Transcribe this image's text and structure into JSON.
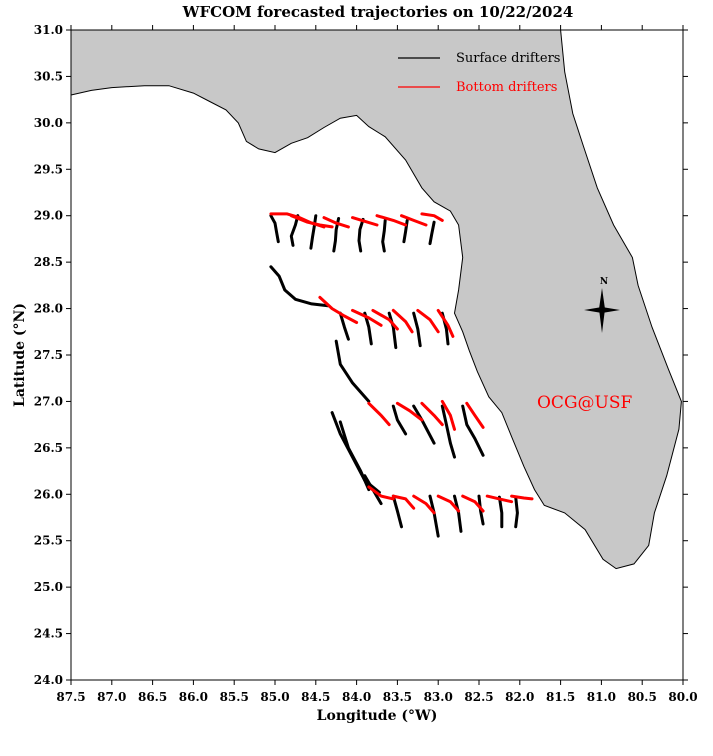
{
  "chart_data": {
    "type": "map-trajectories",
    "title": "WFCOM forecasted trajectories on 10/22/2024",
    "xlabel": "Longitude (°W)",
    "ylabel": "Latitude (°N)",
    "xlim": [
      87.5,
      80.0
    ],
    "ylim": [
      24.0,
      31.0
    ],
    "x_ticks": [
      "87.5",
      "87.0",
      "86.5",
      "86.0",
      "85.5",
      "85.0",
      "84.5",
      "84.0",
      "83.5",
      "83.0",
      "82.5",
      "82.0",
      "81.5",
      "81.0",
      "80.5",
      "80.0"
    ],
    "y_ticks": [
      "24.0",
      "24.5",
      "25.0",
      "25.5",
      "26.0",
      "26.5",
      "27.0",
      "27.5",
      "28.0",
      "28.5",
      "29.0",
      "29.5",
      "30.0",
      "30.5",
      "31.0"
    ],
    "legend": {
      "placement": "top-right",
      "entries": [
        {
          "label": "Surface drifters",
          "color": "#000000"
        },
        {
          "label": "Bottom drifters",
          "color": "#ff0000"
        }
      ]
    },
    "annotation": "OCG@USF",
    "compass_label": "N",
    "colors": {
      "land": "#c8c8c8",
      "surface": "#000000",
      "bottom": "#ff0000"
    },
    "land_outline": [
      [
        87.5,
        30.3
      ],
      [
        87.25,
        30.35
      ],
      [
        87.0,
        30.38
      ],
      [
        86.6,
        30.4
      ],
      [
        86.3,
        30.4
      ],
      [
        86.0,
        30.32
      ],
      [
        85.8,
        30.23
      ],
      [
        85.6,
        30.14
      ],
      [
        85.45,
        30.0
      ],
      [
        85.35,
        29.8
      ],
      [
        85.2,
        29.72
      ],
      [
        85.0,
        29.68
      ],
      [
        84.8,
        29.78
      ],
      [
        84.6,
        29.84
      ],
      [
        84.4,
        29.95
      ],
      [
        84.2,
        30.05
      ],
      [
        84.0,
        30.08
      ],
      [
        83.85,
        29.96
      ],
      [
        83.65,
        29.85
      ],
      [
        83.4,
        29.6
      ],
      [
        83.2,
        29.3
      ],
      [
        83.05,
        29.15
      ],
      [
        82.85,
        29.05
      ],
      [
        82.75,
        28.9
      ],
      [
        82.7,
        28.55
      ],
      [
        82.75,
        28.2
      ],
      [
        82.8,
        27.95
      ],
      [
        82.7,
        27.75
      ],
      [
        82.62,
        27.55
      ],
      [
        82.52,
        27.32
      ],
      [
        82.38,
        27.05
      ],
      [
        82.22,
        26.88
      ],
      [
        82.1,
        26.62
      ],
      [
        81.95,
        26.3
      ],
      [
        81.82,
        26.05
      ],
      [
        81.7,
        25.88
      ],
      [
        81.45,
        25.8
      ],
      [
        81.2,
        25.62
      ],
      [
        80.98,
        25.3
      ],
      [
        80.82,
        25.2
      ],
      [
        80.6,
        25.25
      ],
      [
        80.42,
        25.45
      ],
      [
        80.35,
        25.8
      ],
      [
        80.2,
        26.2
      ],
      [
        80.05,
        26.7
      ],
      [
        80.02,
        27.0
      ],
      [
        80.18,
        27.35
      ],
      [
        80.38,
        27.8
      ],
      [
        80.55,
        28.25
      ],
      [
        80.62,
        28.55
      ],
      [
        80.85,
        28.9
      ],
      [
        81.05,
        29.3
      ],
      [
        81.22,
        29.75
      ],
      [
        81.35,
        30.1
      ],
      [
        81.45,
        30.55
      ],
      [
        81.5,
        31.0
      ],
      [
        87.5,
        31.0
      ]
    ],
    "series": [
      {
        "name": "Surface drifters",
        "group": "surface",
        "lines": [
          [
            [
              85.05,
              29.0
            ],
            [
              85.0,
              28.92
            ],
            [
              84.98,
              28.82
            ],
            [
              84.96,
              28.72
            ]
          ],
          [
            [
              84.72,
              29.0
            ],
            [
              84.75,
              28.9
            ],
            [
              84.8,
              28.78
            ],
            [
              84.78,
              28.68
            ]
          ],
          [
            [
              84.5,
              29.0
            ],
            [
              84.52,
              28.88
            ],
            [
              84.54,
              28.77
            ],
            [
              84.56,
              28.65
            ]
          ],
          [
            [
              84.22,
              28.97
            ],
            [
              84.25,
              28.85
            ],
            [
              84.26,
              28.73
            ],
            [
              84.28,
              28.62
            ]
          ],
          [
            [
              83.92,
              28.96
            ],
            [
              83.96,
              28.85
            ],
            [
              83.97,
              28.73
            ],
            [
              83.95,
              28.62
            ]
          ],
          [
            [
              83.65,
              28.95
            ],
            [
              83.66,
              28.84
            ],
            [
              83.68,
              28.72
            ],
            [
              83.66,
              28.62
            ]
          ],
          [
            [
              83.38,
              28.95
            ],
            [
              83.4,
              28.83
            ],
            [
              83.42,
              28.72
            ]
          ],
          [
            [
              83.05,
              28.93
            ],
            [
              83.08,
              28.8
            ],
            [
              83.1,
              28.7
            ]
          ],
          [
            [
              85.05,
              28.45
            ],
            [
              84.95,
              28.35
            ],
            [
              84.88,
              28.2
            ],
            [
              84.75,
              28.1
            ],
            [
              84.55,
              28.05
            ],
            [
              84.35,
              28.03
            ]
          ],
          [
            [
              84.2,
              27.95
            ],
            [
              84.15,
              27.8
            ],
            [
              84.1,
              27.67
            ]
          ],
          [
            [
              83.9,
              27.95
            ],
            [
              83.85,
              27.8
            ],
            [
              83.82,
              27.62
            ]
          ],
          [
            [
              83.6,
              27.95
            ],
            [
              83.55,
              27.8
            ],
            [
              83.52,
              27.58
            ]
          ],
          [
            [
              83.3,
              27.95
            ],
            [
              83.25,
              27.78
            ],
            [
              83.22,
              27.6
            ]
          ],
          [
            [
              82.95,
              27.95
            ],
            [
              82.9,
              27.78
            ],
            [
              82.88,
              27.62
            ]
          ],
          [
            [
              84.25,
              27.65
            ],
            [
              84.2,
              27.4
            ],
            [
              84.05,
              27.2
            ],
            [
              83.85,
              27.0
            ]
          ],
          [
            [
              83.55,
              26.95
            ],
            [
              83.5,
              26.8
            ],
            [
              83.4,
              26.65
            ]
          ],
          [
            [
              83.3,
              26.95
            ],
            [
              83.2,
              26.8
            ],
            [
              83.05,
              26.55
            ]
          ],
          [
            [
              82.95,
              26.95
            ],
            [
              82.9,
              26.75
            ],
            [
              82.85,
              26.55
            ],
            [
              82.8,
              26.4
            ]
          ],
          [
            [
              82.7,
              26.95
            ],
            [
              82.65,
              26.75
            ],
            [
              82.55,
              26.6
            ],
            [
              82.45,
              26.42
            ]
          ],
          [
            [
              84.3,
              26.88
            ],
            [
              84.2,
              26.65
            ],
            [
              84.05,
              26.4
            ],
            [
              83.9,
              26.15
            ],
            [
              83.72,
              26.02
            ]
          ],
          [
            [
              84.2,
              26.78
            ],
            [
              84.1,
              26.5
            ],
            [
              83.95,
              26.25
            ],
            [
              83.85,
              26.05
            ]
          ],
          [
            [
              83.9,
              26.2
            ],
            [
              83.8,
              26.05
            ],
            [
              83.7,
              25.9
            ]
          ],
          [
            [
              83.55,
              25.98
            ],
            [
              83.5,
              25.82
            ],
            [
              83.45,
              25.65
            ]
          ],
          [
            [
              83.1,
              25.98
            ],
            [
              83.05,
              25.8
            ],
            [
              83.0,
              25.55
            ]
          ],
          [
            [
              82.8,
              25.98
            ],
            [
              82.75,
              25.8
            ],
            [
              82.72,
              25.6
            ]
          ],
          [
            [
              82.5,
              25.98
            ],
            [
              82.48,
              25.82
            ],
            [
              82.45,
              25.68
            ]
          ],
          [
            [
              82.25,
              25.97
            ],
            [
              82.22,
              25.8
            ],
            [
              82.22,
              25.65
            ]
          ],
          [
            [
              82.05,
              25.97
            ],
            [
              82.03,
              25.8
            ],
            [
              82.05,
              25.65
            ]
          ]
        ]
      },
      {
        "name": "Bottom drifters",
        "group": "bottom",
        "lines": [
          [
            [
              85.05,
              29.02
            ],
            [
              84.85,
              29.02
            ],
            [
              84.7,
              28.98
            ],
            [
              84.55,
              28.92
            ],
            [
              84.4,
              28.88
            ]
          ],
          [
            [
              84.8,
              29.0
            ],
            [
              84.6,
              28.93
            ],
            [
              84.45,
              28.9
            ],
            [
              84.3,
              28.88
            ]
          ],
          [
            [
              84.4,
              28.98
            ],
            [
              84.25,
              28.92
            ],
            [
              84.1,
              28.88
            ]
          ],
          [
            [
              84.05,
              28.98
            ],
            [
              83.9,
              28.94
            ],
            [
              83.75,
              28.9
            ]
          ],
          [
            [
              83.75,
              29.0
            ],
            [
              83.55,
              28.95
            ],
            [
              83.4,
              28.9
            ]
          ],
          [
            [
              83.45,
              29.0
            ],
            [
              83.3,
              28.95
            ],
            [
              83.15,
              28.9
            ]
          ],
          [
            [
              83.2,
              29.02
            ],
            [
              83.05,
              29.0
            ],
            [
              82.95,
              28.95
            ]
          ],
          [
            [
              84.45,
              28.12
            ],
            [
              84.3,
              28.0
            ],
            [
              84.15,
              27.92
            ],
            [
              84.0,
              27.85
            ]
          ],
          [
            [
              84.05,
              27.98
            ],
            [
              83.85,
              27.9
            ],
            [
              83.7,
              27.82
            ]
          ],
          [
            [
              83.8,
              27.98
            ],
            [
              83.6,
              27.88
            ],
            [
              83.5,
              27.78
            ]
          ],
          [
            [
              83.55,
              27.98
            ],
            [
              83.4,
              27.86
            ],
            [
              83.32,
              27.75
            ]
          ],
          [
            [
              83.25,
              27.98
            ],
            [
              83.1,
              27.88
            ],
            [
              83.0,
              27.75
            ]
          ],
          [
            [
              83.0,
              27.98
            ],
            [
              82.88,
              27.82
            ],
            [
              82.82,
              27.7
            ]
          ],
          [
            [
              83.85,
              26.98
            ],
            [
              83.7,
              26.85
            ],
            [
              83.6,
              26.75
            ]
          ],
          [
            [
              83.5,
              26.98
            ],
            [
              83.35,
              26.9
            ],
            [
              83.2,
              26.8
            ]
          ],
          [
            [
              83.2,
              26.98
            ],
            [
              83.05,
              26.85
            ],
            [
              82.95,
              26.75
            ]
          ],
          [
            [
              82.95,
              27.0
            ],
            [
              82.85,
              26.85
            ],
            [
              82.8,
              26.7
            ]
          ],
          [
            [
              82.65,
              26.98
            ],
            [
              82.55,
              26.85
            ],
            [
              82.45,
              26.72
            ]
          ],
          [
            [
              83.85,
              26.08
            ],
            [
              83.7,
              25.98
            ],
            [
              83.55,
              25.95
            ]
          ],
          [
            [
              83.55,
              25.98
            ],
            [
              83.4,
              25.95
            ],
            [
              83.3,
              25.85
            ]
          ],
          [
            [
              83.3,
              25.98
            ],
            [
              83.15,
              25.9
            ],
            [
              83.05,
              25.8
            ]
          ],
          [
            [
              83.0,
              25.98
            ],
            [
              82.85,
              25.92
            ],
            [
              82.75,
              25.82
            ]
          ],
          [
            [
              82.7,
              25.98
            ],
            [
              82.55,
              25.92
            ],
            [
              82.45,
              25.82
            ]
          ],
          [
            [
              82.4,
              25.98
            ],
            [
              82.25,
              25.95
            ],
            [
              82.1,
              25.92
            ]
          ],
          [
            [
              82.1,
              25.98
            ],
            [
              81.95,
              25.96
            ],
            [
              81.85,
              25.95
            ]
          ]
        ]
      }
    ]
  }
}
